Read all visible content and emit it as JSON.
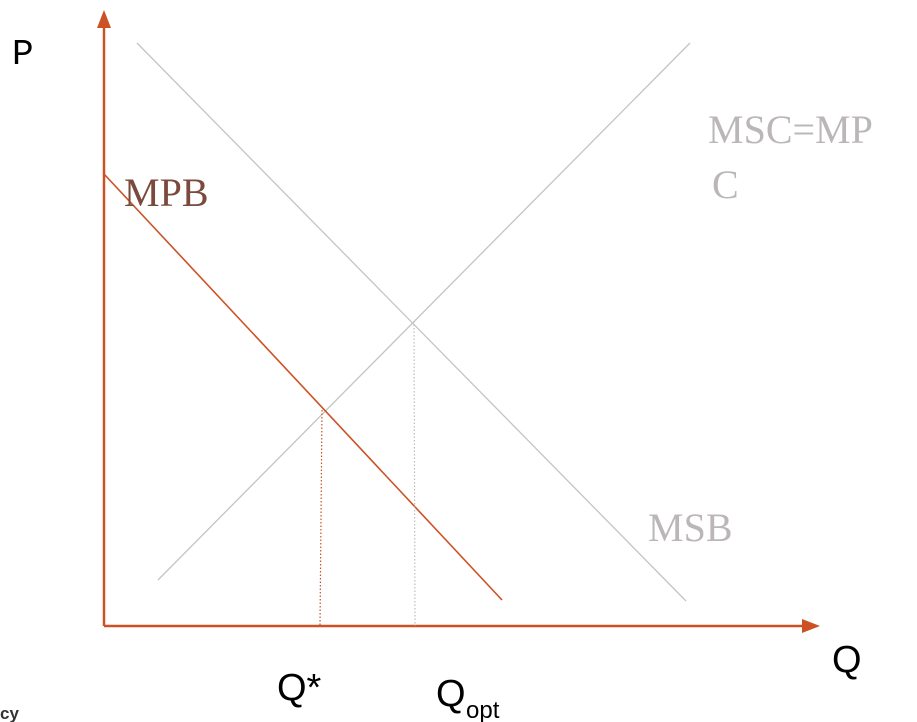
{
  "axes": {
    "y_label": "P",
    "x_label": "Q"
  },
  "curves": {
    "msc_label_line1": "MSC=MP",
    "msc_label_line2": "C",
    "mpb_label": "MPB",
    "msb_label": "MSB"
  },
  "quantities": {
    "q_star_label": "Q*",
    "q_opt_main": "Q",
    "q_opt_sub": "opt"
  },
  "corner_text": "cy",
  "colors": {
    "axis": "#cc5224",
    "mpb_curve": "#cc5224",
    "grey_curves": "#c4c4c4",
    "mpb_label": "#7b4a3c",
    "grey_labels": "#bcb7b7"
  }
}
